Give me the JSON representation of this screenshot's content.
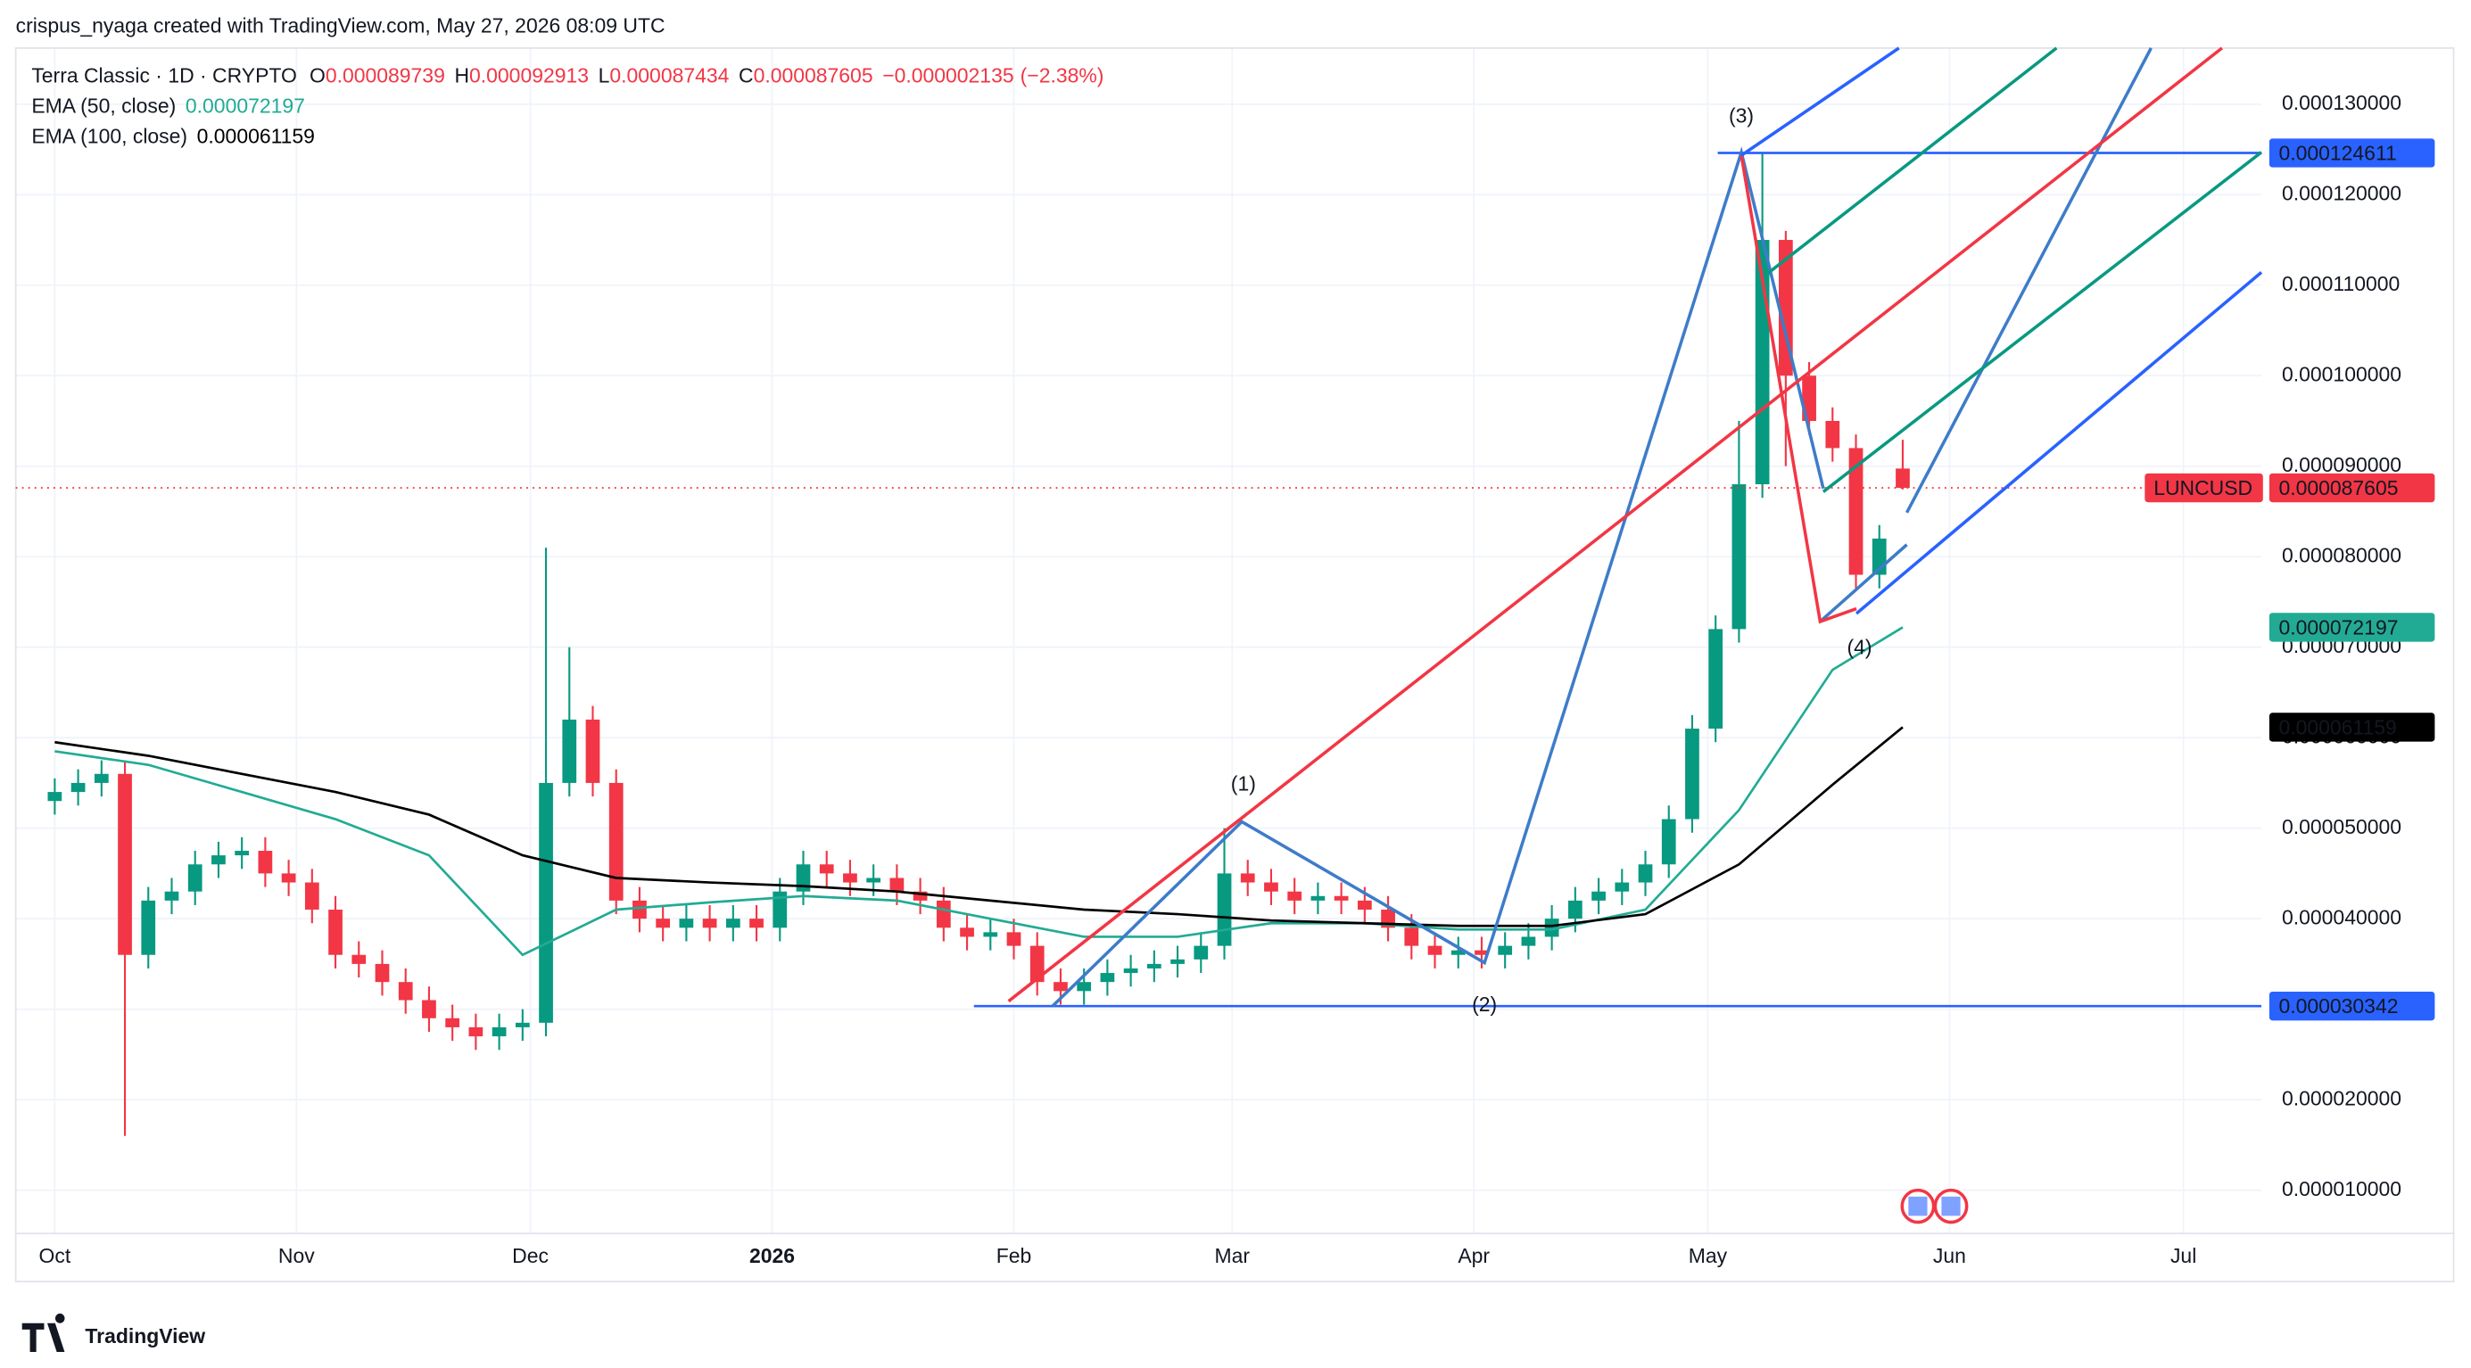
{
  "header": {
    "attribution": "crispus_nyaga created with TradingView.com, May 27, 2026 08:09 UTC",
    "symbol": "Terra Classic · 1D · CRYPTO",
    "ohlc_labels": [
      "O",
      "H",
      "L",
      "C"
    ],
    "change": "−0.000002135",
    "change_pct": "(−2.38%)"
  },
  "chart_data": {
    "type": "candlestick",
    "up_color": "#089981",
    "down_color": "#f23645",
    "x": [
      0,
      3,
      6,
      9,
      12,
      15,
      18,
      21,
      24,
      27,
      30,
      33,
      36,
      39,
      42,
      45,
      48,
      51,
      54,
      57,
      60,
      63,
      66,
      69,
      72,
      75,
      78,
      81,
      84,
      87,
      90,
      93,
      96,
      99,
      102,
      105,
      108,
      111,
      114,
      117,
      120,
      123,
      126,
      129,
      132,
      135,
      138,
      141,
      144,
      147,
      150,
      153,
      156,
      159,
      162,
      165,
      168,
      171,
      174,
      177,
      180,
      183,
      186,
      189,
      192,
      195,
      198,
      201,
      204,
      207,
      210,
      213,
      216,
      219,
      222,
      225,
      228,
      231,
      234,
      237
    ],
    "open": [
      5.3e-05,
      5.4e-05,
      5.5e-05,
      5.6e-05,
      3.6e-05,
      4.2e-05,
      4.3e-05,
      4.6e-05,
      4.7e-05,
      4.75e-05,
      4.5e-05,
      4.4e-05,
      4.1e-05,
      3.6e-05,
      3.5e-05,
      3.3e-05,
      3.1e-05,
      2.9e-05,
      2.8e-05,
      2.7e-05,
      2.8e-05,
      2.85e-05,
      5.5e-05,
      6.2e-05,
      5.5e-05,
      4.2e-05,
      4e-05,
      3.9e-05,
      4e-05,
      3.9e-05,
      4e-05,
      3.9e-05,
      4.3e-05,
      4.6e-05,
      4.5e-05,
      4.4e-05,
      4.45e-05,
      4.3e-05,
      4.2e-05,
      3.9e-05,
      3.8e-05,
      3.85e-05,
      3.7e-05,
      3.3e-05,
      3.2e-05,
      3.3e-05,
      3.4e-05,
      3.45e-05,
      3.5e-05,
      3.55e-05,
      3.7e-05,
      4.5e-05,
      4.4e-05,
      4.3e-05,
      4.2e-05,
      4.25e-05,
      4.2e-05,
      4.1e-05,
      3.9e-05,
      3.7e-05,
      3.6e-05,
      3.65e-05,
      3.6e-05,
      3.7e-05,
      3.8e-05,
      4e-05,
      4.2e-05,
      4.3e-05,
      4.4e-05,
      4.6e-05,
      5.1e-05,
      6.1e-05,
      7.2e-05,
      8.8e-05,
      0.000115,
      0.0001,
      9.5e-05,
      9.2e-05,
      7.8e-05,
      8.9739e-05
    ],
    "high": [
      5.55e-05,
      5.65e-05,
      5.75e-05,
      5.75e-05,
      4.35e-05,
      4.45e-05,
      4.75e-05,
      4.85e-05,
      4.9e-05,
      4.9e-05,
      4.65e-05,
      4.55e-05,
      4.25e-05,
      3.75e-05,
      3.65e-05,
      3.45e-05,
      3.25e-05,
      3.05e-05,
      2.95e-05,
      2.95e-05,
      3e-05,
      8.1e-05,
      7e-05,
      6.35e-05,
      5.65e-05,
      4.35e-05,
      4.15e-05,
      4.15e-05,
      4.15e-05,
      4.15e-05,
      4.15e-05,
      4.45e-05,
      4.75e-05,
      4.75e-05,
      4.65e-05,
      4.6e-05,
      4.6e-05,
      4.45e-05,
      4.35e-05,
      4.05e-05,
      4e-05,
      4e-05,
      3.85e-05,
      3.45e-05,
      3.45e-05,
      3.55e-05,
      3.6e-05,
      3.65e-05,
      3.7e-05,
      3.85e-05,
      5e-05,
      4.65e-05,
      4.55e-05,
      4.45e-05,
      4.4e-05,
      4.4e-05,
      4.35e-05,
      4.25e-05,
      4.05e-05,
      3.85e-05,
      3.8e-05,
      3.8e-05,
      3.85e-05,
      3.95e-05,
      4.15e-05,
      4.35e-05,
      4.45e-05,
      4.55e-05,
      4.75e-05,
      5.25e-05,
      6.25e-05,
      7.35e-05,
      9.5e-05,
      0.0001246,
      0.000116,
      0.0001015,
      9.65e-05,
      9.35e-05,
      8.35e-05,
      9.2913e-05
    ],
    "low": [
      5.15e-05,
      5.25e-05,
      5.35e-05,
      1.6e-05,
      3.45e-05,
      4.05e-05,
      4.15e-05,
      4.45e-05,
      4.55e-05,
      4.35e-05,
      4.25e-05,
      3.95e-05,
      3.45e-05,
      3.35e-05,
      3.15e-05,
      2.95e-05,
      2.75e-05,
      2.65e-05,
      2.55e-05,
      2.55e-05,
      2.65e-05,
      2.7e-05,
      5.35e-05,
      5.35e-05,
      4.05e-05,
      3.85e-05,
      3.75e-05,
      3.75e-05,
      3.75e-05,
      3.75e-05,
      3.75e-05,
      3.75e-05,
      4.15e-05,
      4.35e-05,
      4.25e-05,
      4.25e-05,
      4.15e-05,
      4.05e-05,
      3.75e-05,
      3.65e-05,
      3.65e-05,
      3.55e-05,
      3.15e-05,
      3.05e-05,
      3.05e-05,
      3.15e-05,
      3.25e-05,
      3.3e-05,
      3.35e-05,
      3.4e-05,
      3.55e-05,
      4.25e-05,
      4.15e-05,
      4.05e-05,
      4.05e-05,
      4.05e-05,
      3.95e-05,
      3.75e-05,
      3.55e-05,
      3.45e-05,
      3.45e-05,
      3.45e-05,
      3.45e-05,
      3.55e-05,
      3.65e-05,
      3.85e-05,
      4.05e-05,
      4.15e-05,
      4.25e-05,
      4.45e-05,
      4.95e-05,
      5.95e-05,
      7.05e-05,
      8.65e-05,
      9e-05,
      9.35e-05,
      9.05e-05,
      7.65e-05,
      7.65e-05,
      8.7434e-05
    ],
    "close": [
      5.4e-05,
      5.5e-05,
      5.6e-05,
      3.6e-05,
      4.2e-05,
      4.3e-05,
      4.6e-05,
      4.7e-05,
      4.75e-05,
      4.5e-05,
      4.4e-05,
      4.1e-05,
      3.6e-05,
      3.5e-05,
      3.3e-05,
      3.1e-05,
      2.9e-05,
      2.8e-05,
      2.7e-05,
      2.8e-05,
      2.85e-05,
      5.5e-05,
      6.2e-05,
      5.5e-05,
      4.2e-05,
      4e-05,
      3.9e-05,
      4e-05,
      3.9e-05,
      4e-05,
      3.9e-05,
      4.3e-05,
      4.6e-05,
      4.5e-05,
      4.4e-05,
      4.45e-05,
      4.3e-05,
      4.2e-05,
      3.9e-05,
      3.8e-05,
      3.85e-05,
      3.7e-05,
      3.3e-05,
      3.2e-05,
      3.3e-05,
      3.4e-05,
      3.45e-05,
      3.5e-05,
      3.55e-05,
      3.7e-05,
      4.5e-05,
      4.4e-05,
      4.3e-05,
      4.2e-05,
      4.25e-05,
      4.2e-05,
      4.1e-05,
      3.9e-05,
      3.7e-05,
      3.6e-05,
      3.65e-05,
      3.6e-05,
      3.7e-05,
      3.8e-05,
      4e-05,
      4.2e-05,
      4.3e-05,
      4.4e-05,
      4.6e-05,
      5.1e-05,
      6.1e-05,
      7.2e-05,
      8.8e-05,
      0.000115,
      0.0001,
      9.5e-05,
      9.2e-05,
      7.8e-05,
      8.2e-05,
      8.7605e-05
    ],
    "series": [
      {
        "name": "EMA (50, close)",
        "color": "#22ab94",
        "x": [
          0,
          12,
          24,
          36,
          48,
          60,
          72,
          84,
          96,
          108,
          120,
          132,
          144,
          156,
          168,
          180,
          192,
          204,
          216,
          228,
          237
        ],
        "values": [
          5.85e-05,
          5.7e-05,
          5.4e-05,
          5.1e-05,
          4.7e-05,
          3.6e-05,
          4.1e-05,
          4.18e-05,
          4.25e-05,
          4.2e-05,
          4e-05,
          3.8e-05,
          3.8e-05,
          3.95e-05,
          3.95e-05,
          3.88e-05,
          3.88e-05,
          4.1e-05,
          5.2e-05,
          6.75e-05,
          7.2197e-05
        ]
      },
      {
        "name": "EMA (100, close)",
        "color": "#000000",
        "x": [
          0,
          12,
          24,
          36,
          48,
          60,
          72,
          84,
          96,
          108,
          120,
          132,
          144,
          156,
          168,
          180,
          192,
          204,
          216,
          228,
          237
        ],
        "values": [
          5.95e-05,
          5.8e-05,
          5.6e-05,
          5.4e-05,
          5.15e-05,
          4.7e-05,
          4.45e-05,
          4.4e-05,
          4.36e-05,
          4.3e-05,
          4.2e-05,
          4.1e-05,
          4.05e-05,
          3.98e-05,
          3.95e-05,
          3.92e-05,
          3.92e-05,
          4.05e-05,
          4.6e-05,
          5.48e-05,
          6.1159e-05
        ]
      }
    ],
    "symbol_label": "LUNCUSD",
    "levels": [
      0.000124611,
      3.0342e-05
    ],
    "level_color": "#2962ff",
    "annotations": [
      "(1)",
      "(2)",
      "(3)",
      "(4)"
    ],
    "xlim": [
      -5,
      283
    ],
    "xticks": [
      {
        "value": 0,
        "label": "Oct"
      },
      {
        "value": 31,
        "label": "Nov"
      },
      {
        "value": 61,
        "label": "Dec"
      },
      {
        "value": 92,
        "label": "2026"
      },
      {
        "value": 123,
        "label": "Feb"
      },
      {
        "value": 151,
        "label": "Mar"
      },
      {
        "value": 182,
        "label": "Apr"
      },
      {
        "value": 212,
        "label": "May"
      },
      {
        "value": 243,
        "label": "Jun"
      },
      {
        "value": 273,
        "label": "Jul"
      }
    ],
    "ylim": [
      5.22e-06,
      0.0001362
    ],
    "yticks": [
      {
        "value": 1e-05,
        "label": "0.000010000"
      },
      {
        "value": 2e-05,
        "label": "0.000020000"
      },
      {
        "value": 3e-05,
        "label": "0.000030000"
      },
      {
        "value": 4e-05,
        "label": "0.000040000"
      },
      {
        "value": 5e-05,
        "label": "0.000050000"
      },
      {
        "value": 6e-05,
        "label": "0.000060000"
      },
      {
        "value": 7e-05,
        "label": "0.000070000"
      },
      {
        "value": 8e-05,
        "label": "0.000080000"
      },
      {
        "value": 9e-05,
        "label": "0.000090000"
      },
      {
        "value": 0.0001,
        "label": "0.000100000"
      },
      {
        "value": 0.00011,
        "label": "0.000110000"
      },
      {
        "value": 0.00012,
        "label": "0.000120000"
      },
      {
        "value": 0.00013,
        "label": "0.000130000"
      }
    ],
    "grid": true
  },
  "footer": {
    "brand": "TradingView"
  }
}
